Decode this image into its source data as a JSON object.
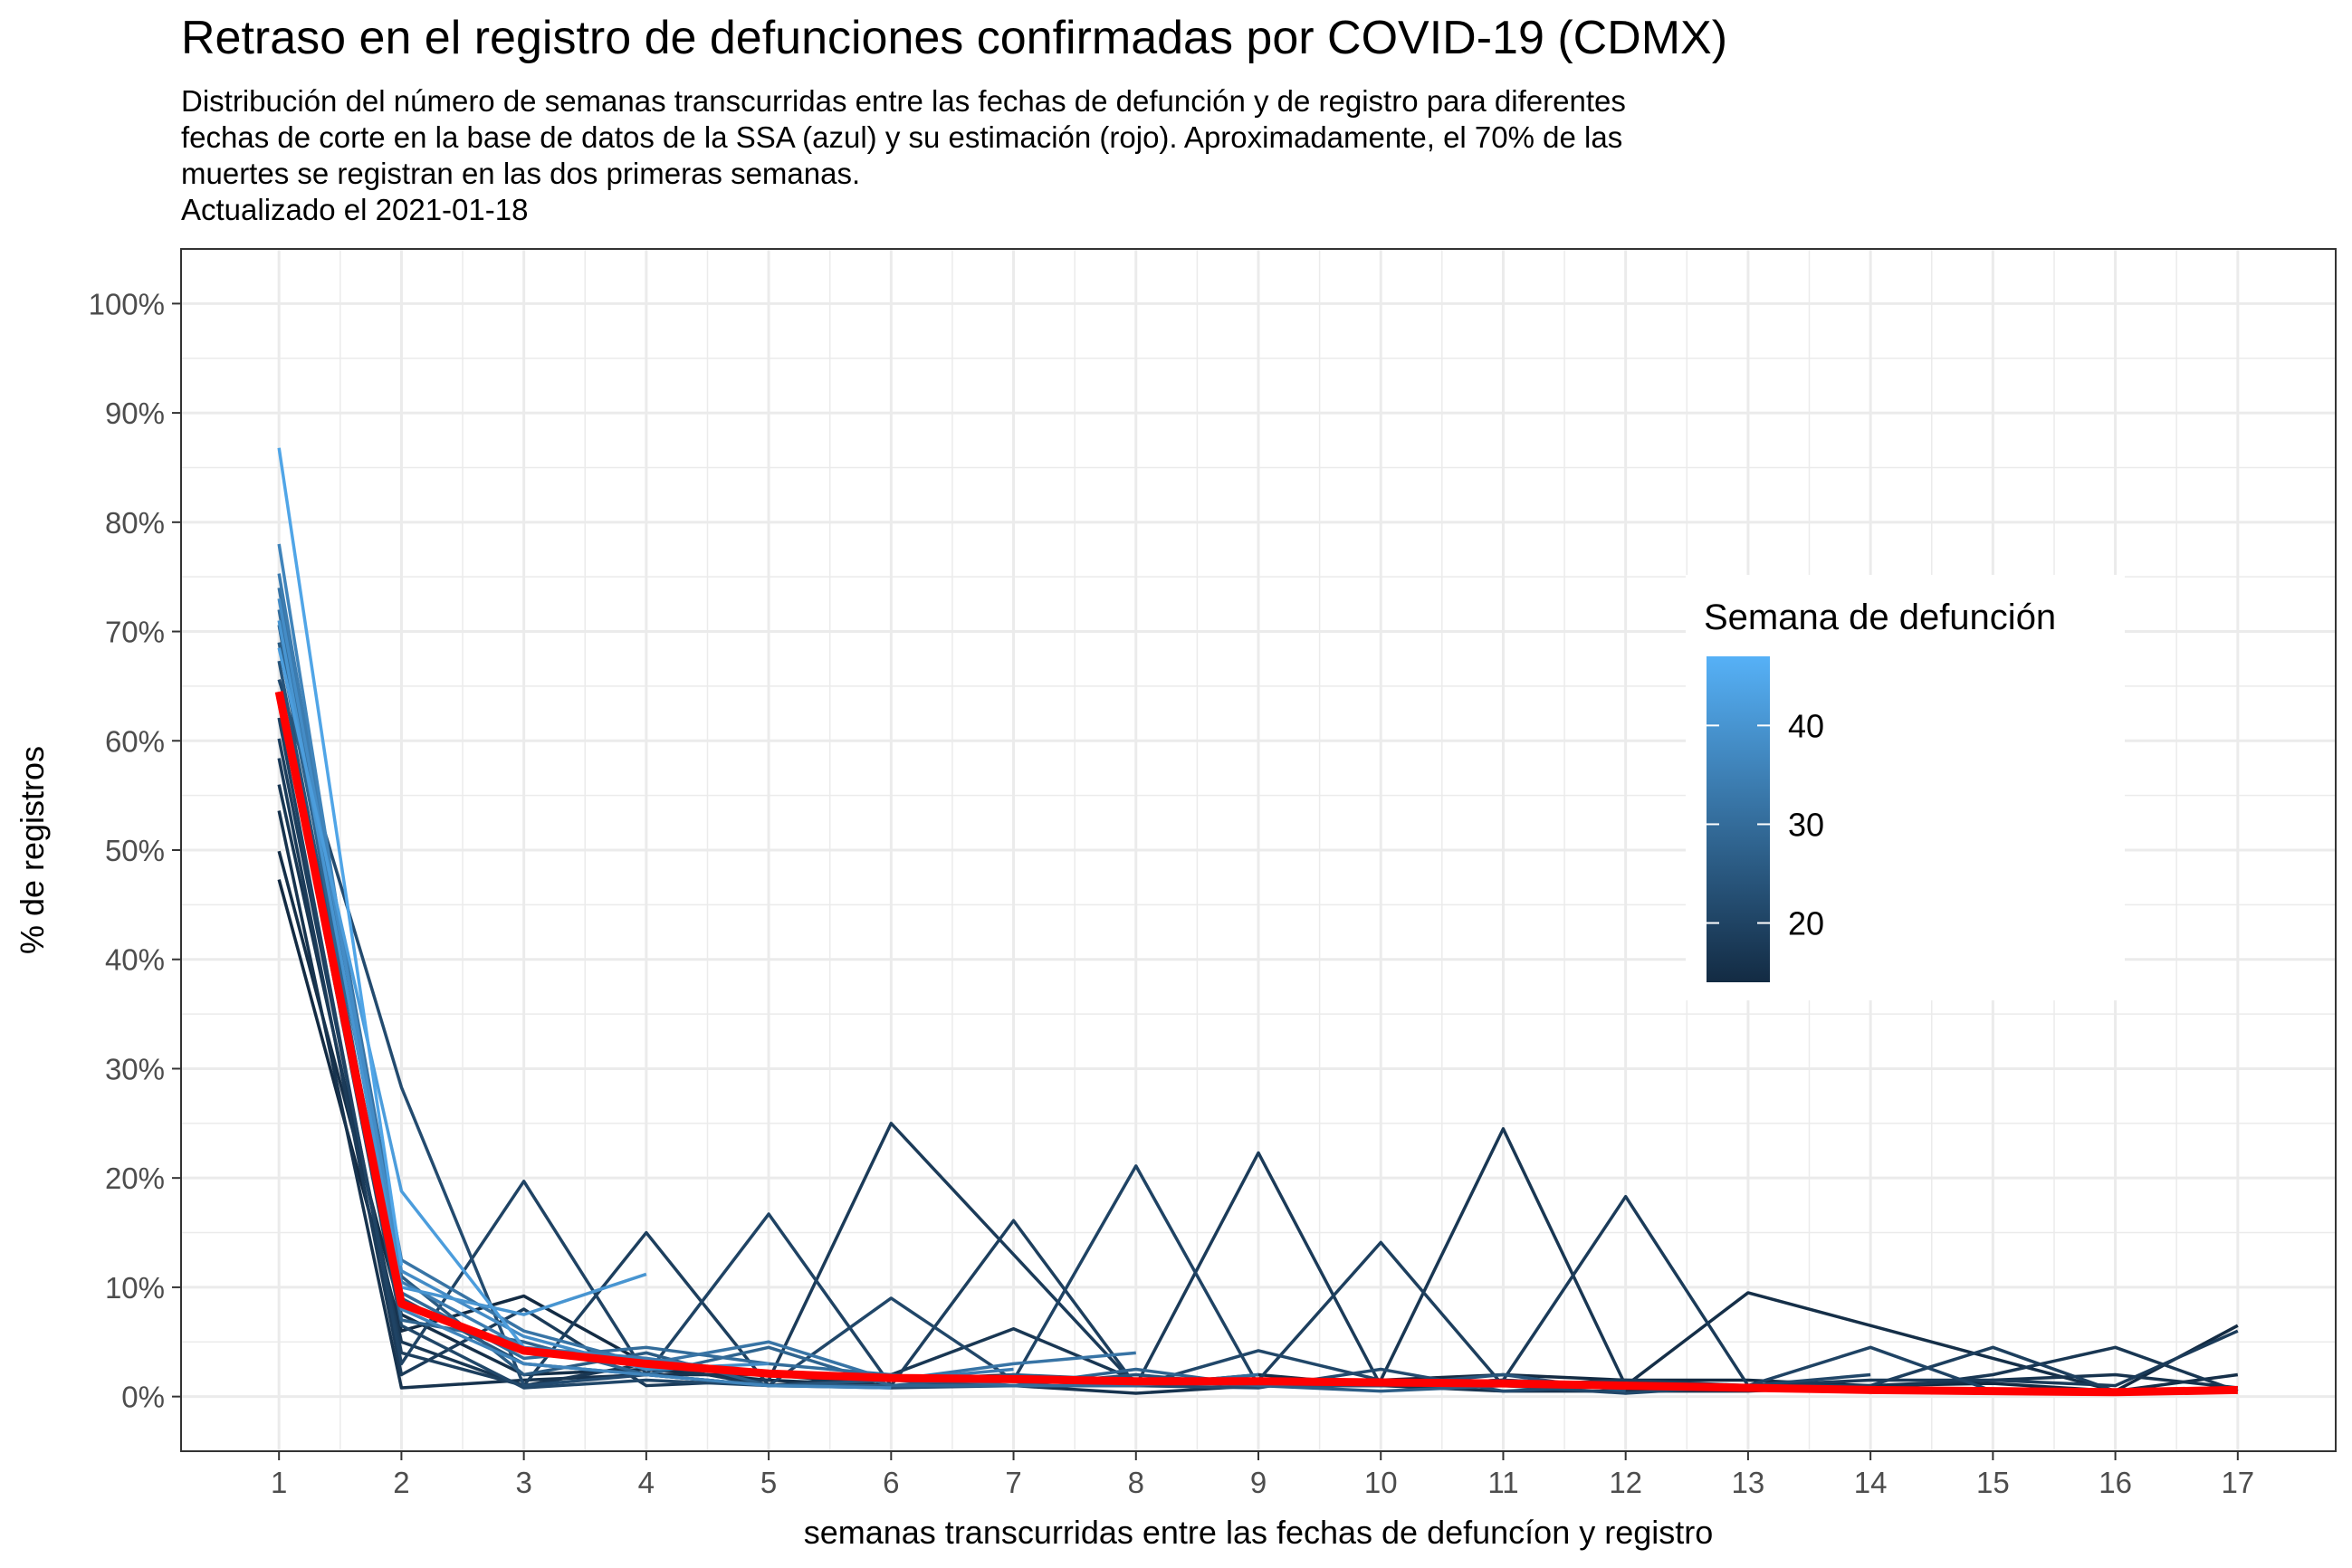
{
  "chart_data": {
    "type": "line",
    "title": "Retraso en el registro de defunciones confirmadas por COVID-19 (CDMX)",
    "subtitle_lines": [
      "Distribución del número de semanas transcurridas entre las fechas de defunción y de registro para diferentes",
      "fechas de corte en la base de datos de la SSA (azul) y su estimación (rojo). Aproximadamente, el 70% de las",
      "muertes se registran en las dos primeras semanas.",
      "Actualizado el  2021-01-18"
    ],
    "xlabel": "semanas transcurridas entre las fechas de defuncíon y registro",
    "ylabel": "% de registros",
    "x_ticks": [
      1,
      2,
      3,
      4,
      5,
      6,
      7,
      8,
      9,
      10,
      11,
      12,
      13,
      14,
      15,
      16,
      17
    ],
    "y_ticks": [
      0,
      10,
      20,
      30,
      40,
      50,
      60,
      70,
      80,
      90,
      100
    ],
    "y_tick_suffix": "%",
    "xlim": [
      0.2,
      17.8
    ],
    "ylim": [
      -5,
      105
    ],
    "grid": true,
    "legend": {
      "title": "Semana de defunción",
      "type": "colorbar",
      "ticks": [
        20,
        30,
        40
      ],
      "range": [
        14,
        47
      ],
      "color_low": "#132B43",
      "color_high": "#56B1F7",
      "placement": "right-inside"
    },
    "estimate": {
      "color": "#FF0000",
      "x": [
        1,
        2,
        3,
        4,
        5,
        6,
        7,
        8,
        9,
        10,
        11,
        12,
        13,
        14,
        15,
        16,
        17
      ],
      "y": [
        64.5,
        8.5,
        4.2,
        3.0,
        2.1,
        1.7,
        1.6,
        1.4,
        1.4,
        1.3,
        1.2,
        1.0,
        0.8,
        0.6,
        0.5,
        0.4,
        0.6
      ]
    },
    "series": [
      {
        "week": 14,
        "x": [
          1,
          2,
          3,
          4,
          5,
          6,
          7,
          8,
          9,
          10,
          11,
          12,
          13,
          14,
          15,
          16,
          17
        ],
        "y": [
          47.3,
          6.0,
          9.2,
          3.0,
          2.0,
          1.5,
          2.0,
          1.0,
          1.5,
          1.5,
          2.0,
          1.5,
          1.5,
          1.0,
          1.2,
          0.5,
          6.5
        ]
      },
      {
        "week": 15,
        "x": [
          1,
          2,
          3,
          4,
          5,
          6,
          7,
          8,
          9,
          10,
          11,
          12,
          13,
          14,
          15,
          16,
          17
        ],
        "y": [
          49.9,
          7.5,
          2.0,
          2.5,
          1.5,
          1.0,
          1.5,
          1.0,
          2.0,
          1.0,
          1.5,
          1.0,
          9.5,
          6.5,
          3.5,
          0.5,
          2.0
        ]
      },
      {
        "week": 16,
        "x": [
          1,
          2,
          3,
          4,
          5,
          6,
          7,
          8,
          9,
          10,
          11,
          12,
          13,
          14,
          15,
          16,
          17
        ],
        "y": [
          53.6,
          0.8,
          1.5,
          2.0,
          2.0,
          1.0,
          1.0,
          0.3,
          1.0,
          1.0,
          0.5,
          0.5,
          0.5,
          1.0,
          1.5,
          2.0,
          0.8
        ]
      },
      {
        "week": 17,
        "x": [
          1,
          2,
          3,
          4,
          5,
          6,
          7,
          8,
          9,
          10,
          11,
          12,
          13,
          14,
          15,
          16,
          17
        ],
        "y": [
          56.0,
          5.0,
          1.0,
          3.0,
          1.0,
          2.0,
          6.2,
          1.5,
          1.0,
          1.5,
          24.5,
          1.0,
          1.0,
          0.5,
          2.0,
          4.5,
          0.5
        ]
      },
      {
        "week": 18,
        "x": [
          1,
          2,
          3,
          4,
          5,
          6,
          7,
          8,
          9,
          10,
          11,
          12,
          13,
          14,
          15,
          16,
          17
        ],
        "y": [
          58.4,
          2.0,
          8.0,
          1.0,
          1.5,
          25.0,
          13.0,
          1.0,
          22.3,
          1.0,
          1.5,
          18.3,
          1.0,
          1.5,
          1.5,
          1.0,
          6.0
        ]
      },
      {
        "week": 19,
        "x": [
          1,
          2,
          3,
          4,
          5,
          6,
          7,
          8,
          9,
          10,
          11,
          12,
          13,
          14,
          15,
          16
        ],
        "y": [
          60.2,
          4.0,
          1.0,
          15.0,
          1.0,
          1.0,
          16.1,
          1.0,
          1.5,
          14.1,
          1.0,
          1.5,
          1.0,
          1.0,
          4.5,
          0.5
        ]
      },
      {
        "week": 20,
        "x": [
          1,
          2,
          3,
          4,
          5,
          6,
          7,
          8,
          9,
          10,
          11,
          12,
          13,
          14,
          15
        ],
        "y": [
          62.1,
          3.0,
          19.7,
          2.0,
          16.7,
          1.0,
          1.5,
          21.1,
          1.0,
          1.0,
          1.5,
          1.0,
          1.0,
          4.5,
          0.5
        ]
      },
      {
        "week": 21,
        "x": [
          1,
          2,
          3,
          4,
          5,
          6,
          7,
          8,
          9,
          10,
          11,
          12,
          13,
          14
        ],
        "y": [
          64.0,
          6.5,
          0.8,
          1.5,
          1.0,
          9.0,
          1.5,
          1.0,
          4.2,
          1.5,
          1.0,
          0.3,
          1.0,
          2.0
        ]
      },
      {
        "week": 22,
        "x": [
          1,
          2,
          3,
          4,
          5,
          6,
          7,
          8,
          9,
          10,
          11,
          12,
          13
        ],
        "y": [
          65.6,
          28.3,
          1.0,
          2.0,
          1.0,
          0.8,
          1.0,
          1.0,
          0.8,
          2.5,
          0.5,
          1.0,
          1.0
        ]
      },
      {
        "week": 24,
        "x": [
          1,
          2,
          3,
          4,
          5,
          6,
          7,
          8,
          9,
          10,
          11,
          12
        ],
        "y": [
          67.3,
          9.0,
          3.0,
          2.0,
          1.0,
          1.5,
          1.0,
          2.0,
          1.0,
          1.0,
          2.0,
          0.5
        ]
      },
      {
        "week": 26,
        "x": [
          1,
          2,
          3,
          4,
          5,
          6,
          7,
          8,
          9,
          10,
          11
        ],
        "y": [
          69.0,
          11.0,
          2.0,
          4.0,
          1.0,
          1.0,
          2.0,
          1.5,
          1.0,
          0.5,
          1.0
        ]
      },
      {
        "week": 28,
        "x": [
          1,
          2,
          3,
          4,
          5,
          6,
          7,
          8,
          9,
          10
        ],
        "y": [
          70.6,
          7.0,
          5.0,
          2.0,
          4.5,
          1.0,
          1.0,
          2.5,
          1.0,
          1.5
        ]
      },
      {
        "week": 30,
        "x": [
          1,
          2,
          3,
          4,
          5,
          6,
          7,
          8,
          9
        ],
        "y": [
          72.0,
          9.5,
          3.5,
          4.5,
          3.0,
          2.0,
          1.0,
          1.0,
          2.0
        ]
      },
      {
        "week": 32,
        "x": [
          1,
          2,
          3,
          4,
          5,
          6,
          7,
          8
        ],
        "y": [
          74.0,
          12.5,
          6.0,
          3.0,
          5.0,
          1.5,
          3.0,
          4.0
        ]
      },
      {
        "week": 34,
        "x": [
          1,
          2,
          3,
          4,
          5,
          6,
          7
        ],
        "y": [
          75.3,
          10.5,
          4.5,
          3.5,
          2.0,
          1.5,
          2.5
        ]
      },
      {
        "week": 36,
        "x": [
          1,
          2,
          3,
          4,
          5,
          6
        ],
        "y": [
          78.0,
          8.0,
          3.0,
          2.0,
          1.0,
          0.8
        ]
      },
      {
        "week": 38,
        "x": [
          1,
          2,
          3,
          4,
          5
        ],
        "y": [
          73.0,
          11.5,
          5.5,
          2.5,
          3.0
        ]
      },
      {
        "week": 40,
        "x": [
          1,
          2,
          3,
          4
        ],
        "y": [
          71.0,
          10.0,
          7.5,
          11.2
        ]
      },
      {
        "week": 42,
        "x": [
          1,
          2,
          3
        ],
        "y": [
          68.5,
          18.8,
          4.5
        ]
      },
      {
        "week": 44,
        "x": [
          1,
          2
        ],
        "y": [
          86.8,
          12.0
        ]
      },
      {
        "week": 47,
        "x": [
          1
        ],
        "y": [
          65.0
        ]
      }
    ]
  }
}
